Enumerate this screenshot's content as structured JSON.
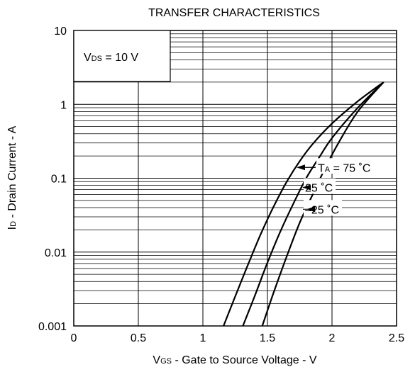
{
  "chart_data": {
    "type": "line",
    "title": "TRANSFER CHARACTERISTICS",
    "xlabel": {
      "main": "V",
      "sub": "GS",
      "rest": " - Gate to Source Voltage - V"
    },
    "ylabel": {
      "main": "I",
      "sub": "D",
      "rest": " - Drain Current - A"
    },
    "xlim": [
      0,
      2.5
    ],
    "ylim": [
      0.001,
      10
    ],
    "yscale": "log",
    "grid": true,
    "x_ticks": [
      "0",
      "0.5",
      "1",
      "1.5",
      "2",
      "2.5"
    ],
    "x_tick_values": [
      0,
      0.5,
      1,
      1.5,
      2,
      2.5
    ],
    "y_ticks": [
      "0.001",
      "0.01",
      "0.1",
      "1",
      "10"
    ],
    "y_tick_values": [
      0.001,
      0.01,
      0.1,
      1,
      10
    ],
    "condition": {
      "main": "V",
      "sub": "DS",
      "rest": " = 10 V"
    },
    "series": [
      {
        "name": "T_A = 75 °C",
        "label": {
          "main": "T",
          "sub": "A",
          "rest": " = 75 ˚C"
        },
        "label_at": 0.14,
        "x": [
          1.16,
          1.25,
          1.35,
          1.45,
          1.55,
          1.65,
          1.75,
          1.85,
          2.0,
          2.2,
          2.4
        ],
        "y": [
          0.001,
          0.0025,
          0.0068,
          0.0178,
          0.042,
          0.09,
          0.17,
          0.29,
          0.55,
          1.1,
          2.0
        ]
      },
      {
        "name": "25 °C",
        "label": {
          "main": "25 ˚C",
          "sub": "",
          "rest": ""
        },
        "label_at": 0.075,
        "x": [
          1.31,
          1.4,
          1.5,
          1.6,
          1.7,
          1.8,
          1.9,
          2.0,
          2.2,
          2.4
        ],
        "y": [
          0.001,
          0.0025,
          0.0072,
          0.019,
          0.045,
          0.1,
          0.19,
          0.35,
          0.9,
          2.0
        ]
      },
      {
        "name": "–25 °C",
        "label": {
          "main": "–25 ˚C",
          "sub": "",
          "rest": ""
        },
        "label_at": 0.038,
        "x": [
          1.46,
          1.55,
          1.65,
          1.75,
          1.85,
          1.95,
          2.05,
          2.2,
          2.4
        ],
        "y": [
          0.001,
          0.0029,
          0.0088,
          0.025,
          0.06,
          0.14,
          0.3,
          0.8,
          2.0
        ]
      }
    ]
  }
}
